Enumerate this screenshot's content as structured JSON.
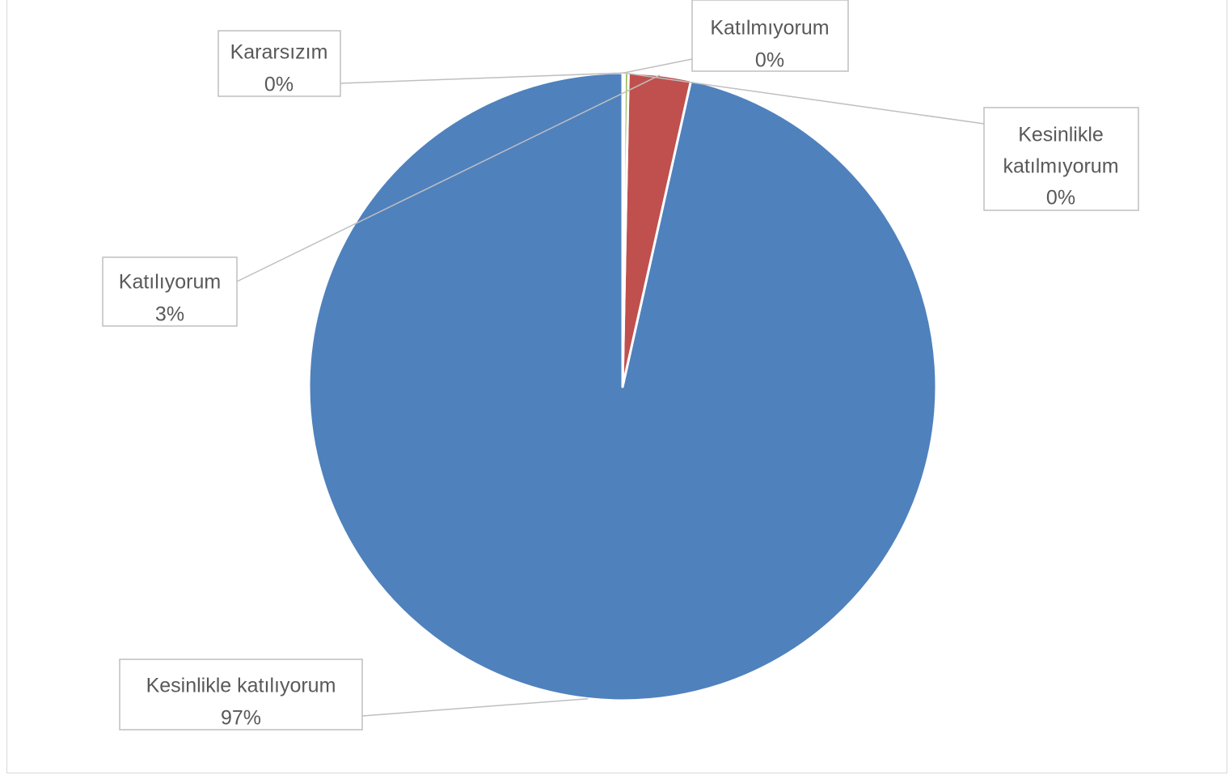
{
  "chart_data": {
    "type": "pie",
    "slices": [
      {
        "label": "Kesinlikle katılıyorum",
        "value": 96.5,
        "display": "97%",
        "color": "#4f81bd"
      },
      {
        "label": "Katılıyorum",
        "value": 3.2,
        "display": "3%",
        "color": "#c0504d"
      },
      {
        "label": "Kararsızım",
        "value": 0.2,
        "display": "0%",
        "color": "#9bbb59"
      },
      {
        "label": "Katılmıyorum",
        "value": 0.05,
        "display": "0%",
        "color": "#8064a2"
      },
      {
        "label": "Kesinlikle katılmıyorum",
        "value": 0.05,
        "display": "0%",
        "color": "#4bacc6"
      }
    ],
    "start_angle": "12 o'clock",
    "direction": "counter-clockwise",
    "legend": "none",
    "data_labels": "category name and percentage, with leader lines"
  }
}
